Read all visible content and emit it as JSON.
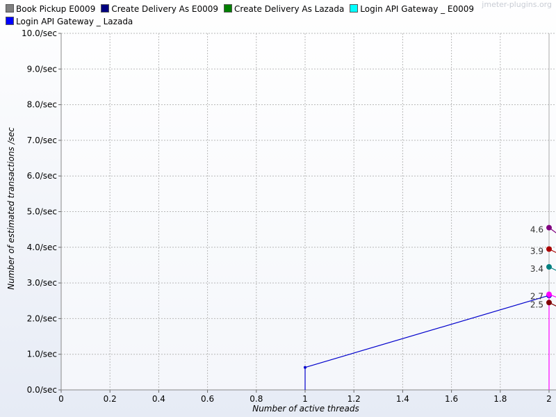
{
  "watermark": "jmeter-plugins.org",
  "chart_data": {
    "type": "line",
    "title": "",
    "xlabel": "Number of active threads",
    "ylabel": "Number of estimated transactions /sec",
    "xlim": [
      0,
      2
    ],
    "ylim": [
      0,
      10
    ],
    "x_ticks": [
      "0",
      "0.2",
      "0.4",
      "0.6",
      "0.8",
      "1",
      "1.2",
      "1.4",
      "1.6",
      "1.8",
      "2"
    ],
    "y_ticks": [
      "0.0/sec",
      "1.0/sec",
      "2.0/sec",
      "3.0/sec",
      "4.0/sec",
      "5.0/sec",
      "6.0/sec",
      "7.0/sec",
      "8.0/sec",
      "9.0/sec",
      "10.0/sec"
    ],
    "grid": true,
    "legend_placement": "top",
    "legend": [
      {
        "name": "Book Pickup E0009",
        "color": "#808080"
      },
      {
        "name": "Create Delivery As E0009",
        "color": "#000080"
      },
      {
        "name": "Create Delivery As Lazada",
        "color": "#008000"
      },
      {
        "name": "Login API Gateway _ E0009",
        "color": "#00ffff"
      },
      {
        "name": "Login API Gateway _ Lazada",
        "color": "#0000ff"
      }
    ],
    "series": [
      {
        "color": "#0000cc",
        "points": [
          [
            1,
            0
          ],
          [
            1,
            0.63
          ],
          [
            2,
            2.65
          ]
        ]
      },
      {
        "color": "#800080",
        "points": [
          [
            2,
            4.55
          ],
          [
            2.03,
            4.4
          ]
        ]
      },
      {
        "color": "#aa0000",
        "points": [
          [
            2,
            3.95
          ],
          [
            2.03,
            3.85
          ]
        ]
      },
      {
        "color": "#008080",
        "points": [
          [
            2,
            3.45
          ],
          [
            2.03,
            3.35
          ]
        ]
      },
      {
        "color": "#ff00ff",
        "points": [
          [
            2,
            0
          ],
          [
            2,
            2.68
          ],
          [
            2.03,
            2.6
          ]
        ]
      },
      {
        "color": "#800000",
        "points": [
          [
            2,
            2.45
          ],
          [
            2.03,
            2.35
          ]
        ]
      }
    ],
    "point_labels": [
      {
        "text": "4.6",
        "x": 2,
        "y": 4.55
      },
      {
        "text": "3.9",
        "x": 2,
        "y": 3.95
      },
      {
        "text": "3.4",
        "x": 2,
        "y": 3.45
      },
      {
        "text": "2.7",
        "x": 2,
        "y": 2.68
      },
      {
        "text": "2.5",
        "x": 2,
        "y": 2.45
      }
    ]
  }
}
